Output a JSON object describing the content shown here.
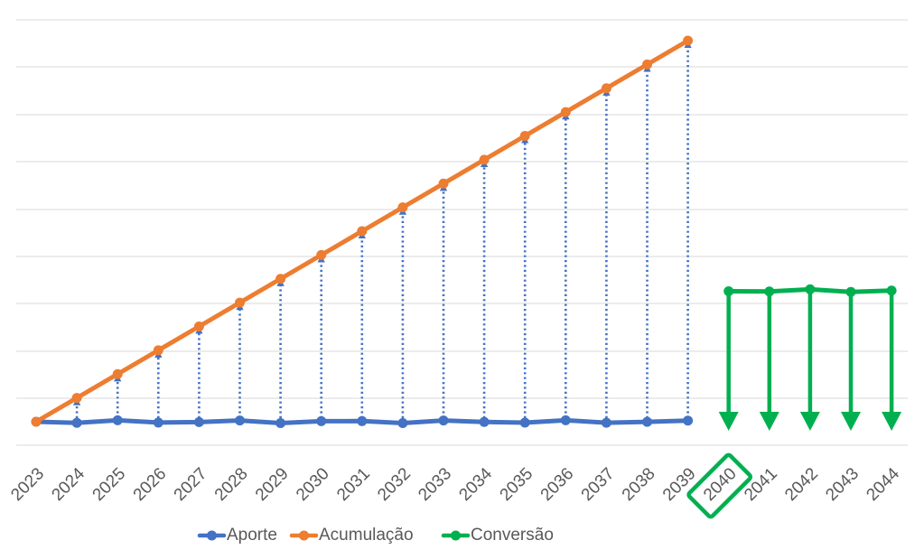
{
  "chart_data": {
    "type": "line",
    "categories": [
      "2023",
      "2024",
      "2025",
      "2026",
      "2027",
      "2028",
      "2029",
      "2030",
      "2031",
      "2032",
      "2033",
      "2034",
      "2035",
      "2036",
      "2037",
      "2038",
      "2039",
      "2040",
      "2041",
      "2042",
      "2043",
      "2044"
    ],
    "ylim": [
      0,
      9
    ],
    "y_axis_labels_shown": false,
    "grid": "horizontal",
    "legend_position": "bottom",
    "highlighted_category": "2040",
    "series": [
      {
        "name": "Aporte",
        "color": "#4472C4",
        "values": [
          0,
          0,
          0,
          0,
          0,
          0,
          0,
          0,
          0,
          0,
          0,
          0,
          0,
          0,
          0,
          0,
          0,
          null,
          null,
          null,
          null,
          null
        ]
      },
      {
        "name": "Acumulação",
        "color": "#ED7D31",
        "values": [
          0,
          0.5,
          1.0,
          1.5,
          2.0,
          2.5,
          3.0,
          3.5,
          4.0,
          4.5,
          5.0,
          5.5,
          6.0,
          6.5,
          7.0,
          7.5,
          8.0,
          null,
          null,
          null,
          null,
          null
        ]
      },
      {
        "name": "Conversão",
        "color": "#00B050",
        "values": [
          null,
          null,
          null,
          null,
          null,
          null,
          null,
          null,
          null,
          null,
          null,
          null,
          null,
          null,
          null,
          null,
          null,
          2.75,
          2.75,
          2.75,
          2.75,
          2.75
        ]
      }
    ],
    "annotations": {
      "contribution_arrows": "dotted blue up-arrows from Aporte to Acumulação, 2024–2039",
      "withdrawal_arrows": "green down-arrows from Conversão level, 2040–2044"
    }
  }
}
